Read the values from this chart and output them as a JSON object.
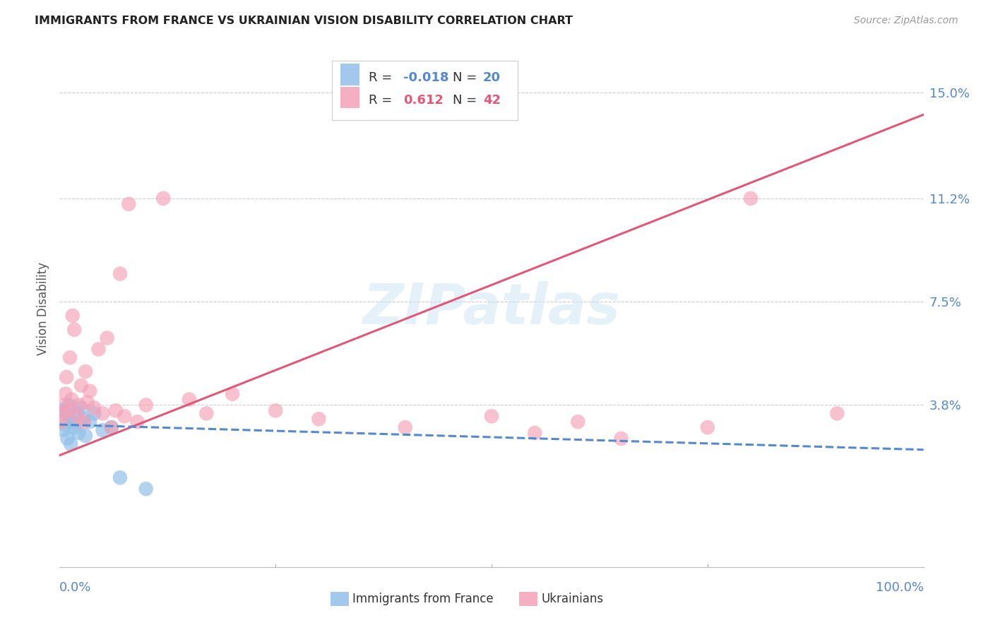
{
  "title": "IMMIGRANTS FROM FRANCE VS UKRAINIAN VISION DISABILITY CORRELATION CHART",
  "source": "Source: ZipAtlas.com",
  "ylabel": "Vision Disability",
  "ytick_values": [
    3.8,
    7.5,
    11.2,
    15.0
  ],
  "xlim": [
    0,
    100
  ],
  "ylim": [
    -2.0,
    16.5
  ],
  "watermark": "ZIPatlas",
  "blue_color": "#92c0e8",
  "pink_color": "#f4a0b8",
  "blue_line_color": "#5588cc",
  "pink_line_color": "#e05878",
  "french_x": [
    0.3,
    0.5,
    0.7,
    0.9,
    1.0,
    1.1,
    1.3,
    1.5,
    1.7,
    2.0,
    2.2,
    2.5,
    2.8,
    3.0,
    3.5,
    4.0,
    5.0,
    6.0,
    7.0,
    10.0
  ],
  "french_y": [
    3.6,
    2.9,
    3.1,
    2.6,
    3.4,
    3.8,
    2.4,
    3.2,
    3.0,
    3.5,
    2.8,
    3.7,
    3.3,
    2.7,
    3.2,
    3.5,
    2.9,
    3.0,
    1.2,
    0.8
  ],
  "ukr_x": [
    0.2,
    0.4,
    0.5,
    0.7,
    0.8,
    1.0,
    1.2,
    1.4,
    1.5,
    1.7,
    2.0,
    2.2,
    2.5,
    2.8,
    3.0,
    3.2,
    3.5,
    4.0,
    4.5,
    5.0,
    5.5,
    6.0,
    6.5,
    7.0,
    7.5,
    8.0,
    9.0,
    10.0,
    12.0,
    15.0,
    17.0,
    20.0,
    25.0,
    30.0,
    40.0,
    50.0,
    55.0,
    60.0,
    65.0,
    75.0,
    80.0,
    90.0
  ],
  "ukr_y": [
    3.2,
    3.5,
    3.8,
    4.2,
    4.8,
    3.6,
    5.5,
    4.0,
    7.0,
    6.5,
    3.4,
    3.8,
    4.5,
    3.2,
    5.0,
    3.9,
    4.3,
    3.7,
    5.8,
    3.5,
    6.2,
    3.0,
    3.6,
    8.5,
    3.4,
    11.0,
    3.2,
    3.8,
    11.2,
    4.0,
    3.5,
    4.2,
    3.6,
    3.3,
    3.0,
    3.4,
    2.8,
    3.2,
    2.6,
    3.0,
    11.2,
    3.5
  ],
  "pink_line_x0": 0,
  "pink_line_y0": 2.0,
  "pink_line_x1": 100,
  "pink_line_y1": 14.2,
  "blue_line_x0": 0,
  "blue_line_y0": 3.1,
  "blue_line_x1": 100,
  "blue_line_y1": 2.2
}
